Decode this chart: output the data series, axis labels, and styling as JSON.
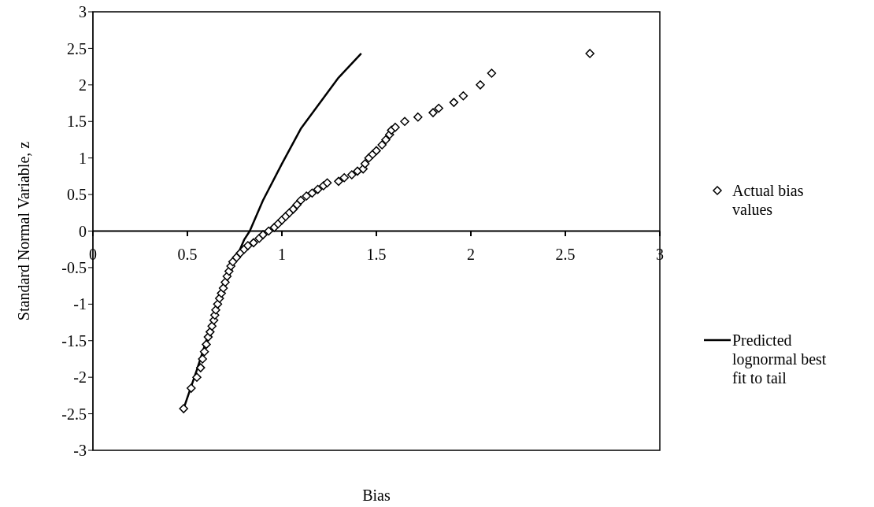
{
  "chart_data": {
    "type": "scatter",
    "xlabel": "Bias",
    "ylabel": "Standard Normal Variable, z",
    "xlim": [
      0,
      3
    ],
    "ylim": [
      -3,
      3
    ],
    "xticks": [
      0,
      0.5,
      1,
      1.5,
      2,
      2.5,
      3
    ],
    "yticks": [
      -3,
      -2.5,
      -2,
      -1.5,
      -1,
      -0.5,
      0,
      0.5,
      1,
      1.5,
      2,
      2.5,
      3
    ],
    "legend": "right",
    "grid": false,
    "series": [
      {
        "name": "Actual bias values",
        "marker": "diamond",
        "color": "#000000",
        "x": [
          0.48,
          0.52,
          0.55,
          0.57,
          0.58,
          0.59,
          0.6,
          0.61,
          0.62,
          0.63,
          0.64,
          0.645,
          0.65,
          0.66,
          0.67,
          0.68,
          0.69,
          0.7,
          0.71,
          0.72,
          0.73,
          0.74,
          0.76,
          0.78,
          0.8,
          0.82,
          0.85,
          0.88,
          0.9,
          0.93,
          0.96,
          0.98,
          1.0,
          1.02,
          1.04,
          1.06,
          1.08,
          1.1,
          1.13,
          1.16,
          1.19,
          1.22,
          1.24,
          1.3,
          1.33,
          1.37,
          1.4,
          1.43,
          1.44,
          1.46,
          1.48,
          1.5,
          1.53,
          1.55,
          1.57,
          1.58,
          1.6,
          1.65,
          1.72,
          1.8,
          1.83,
          1.91,
          1.96,
          2.05,
          2.11,
          2.63
        ],
        "values": [
          -2.43,
          -2.15,
          -2.0,
          -1.87,
          -1.75,
          -1.65,
          -1.55,
          -1.45,
          -1.38,
          -1.3,
          -1.22,
          -1.15,
          -1.08,
          -1.0,
          -0.92,
          -0.85,
          -0.78,
          -0.7,
          -0.62,
          -0.55,
          -0.48,
          -0.42,
          -0.36,
          -0.3,
          -0.25,
          -0.2,
          -0.16,
          -0.1,
          -0.05,
          0.0,
          0.05,
          0.1,
          0.15,
          0.2,
          0.25,
          0.3,
          0.36,
          0.42,
          0.48,
          0.52,
          0.57,
          0.62,
          0.66,
          0.68,
          0.73,
          0.77,
          0.82,
          0.85,
          0.92,
          1.0,
          1.05,
          1.1,
          1.18,
          1.25,
          1.32,
          1.38,
          1.42,
          1.5,
          1.56,
          1.62,
          1.68,
          1.76,
          1.85,
          2.0,
          2.16,
          2.43
        ]
      },
      {
        "name": "Predicted lognormal best fit to tail",
        "type": "line",
        "marker": "none",
        "line_style": "solid",
        "color": "#000000",
        "x": [
          0.48,
          0.55,
          0.6,
          0.65,
          0.7,
          0.75,
          0.8,
          0.83,
          0.9,
          1.0,
          1.1,
          1.2,
          1.3,
          1.42
        ],
        "values": [
          -2.43,
          -1.9,
          -1.5,
          -1.1,
          -0.75,
          -0.42,
          -0.12,
          0,
          0.42,
          0.92,
          1.4,
          1.75,
          2.1,
          2.43
        ]
      }
    ]
  }
}
